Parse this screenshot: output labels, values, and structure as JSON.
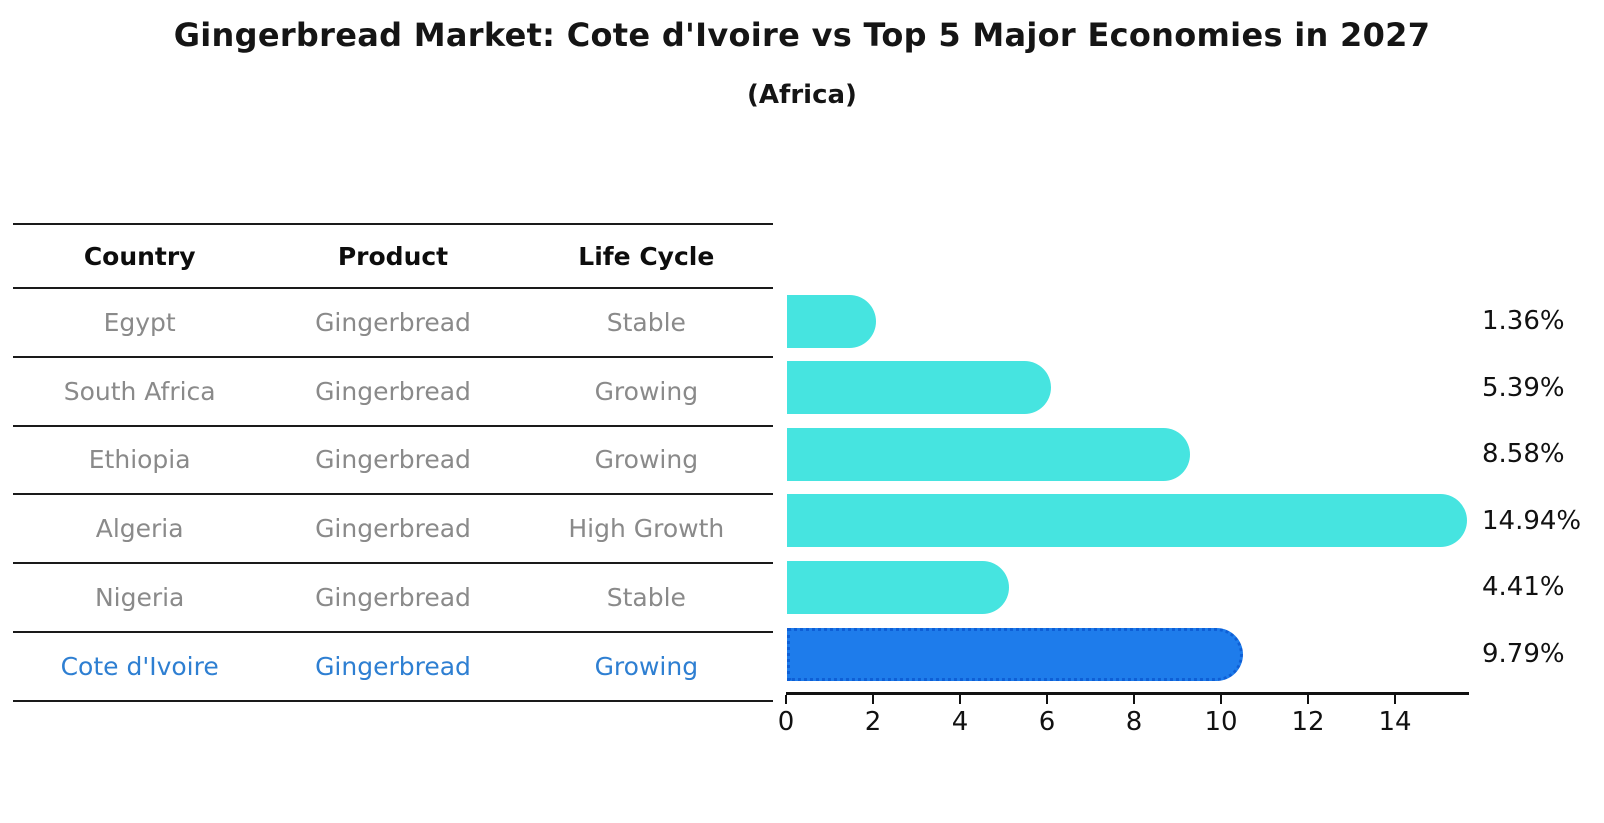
{
  "title": "Gingerbread Market: Cote d'Ivoire vs Top 5 Major Economies in 2027",
  "subtitle": "(Africa)",
  "table": {
    "headers": [
      "Country",
      "Product",
      "Life Cycle"
    ],
    "rows": [
      {
        "country": "Egypt",
        "product": "Gingerbread",
        "life_cycle": "Stable"
      },
      {
        "country": "South Africa",
        "product": "Gingerbread",
        "life_cycle": "Growing"
      },
      {
        "country": "Ethiopia",
        "product": "Gingerbread",
        "life_cycle": "Growing"
      },
      {
        "country": "Algeria",
        "product": "Gingerbread",
        "life_cycle": "High Growth"
      },
      {
        "country": "Nigeria",
        "product": "Gingerbread",
        "life_cycle": "Stable"
      },
      {
        "country": "Cote d'Ivoire",
        "product": "Gingerbread",
        "life_cycle": "Growing"
      }
    ],
    "highlight_row": "Cote d'Ivoire"
  },
  "chart_data": {
    "type": "bar",
    "orientation": "horizontal",
    "categories": [
      "Egypt",
      "South Africa",
      "Ethiopia",
      "Algeria",
      "Nigeria",
      "Cote d'Ivoire"
    ],
    "values": [
      1.36,
      5.39,
      8.58,
      14.94,
      4.41,
      9.79
    ],
    "labels": [
      "1.36%",
      "5.39%",
      "8.58%",
      "14.94%",
      "4.41%",
      "9.79%"
    ],
    "x_ticks": [
      0,
      2,
      4,
      6,
      8,
      10,
      12,
      14
    ],
    "xlim": [
      0,
      15.7
    ],
    "grid": false,
    "legend": "none",
    "bar_color": "#46e4e0",
    "highlight_color": "#1e7ceb",
    "highlight_border_color": "#0e5fd6",
    "highlight_index": 5,
    "highlight_text_color": "#2e7fd2",
    "value_label_position": "right"
  }
}
